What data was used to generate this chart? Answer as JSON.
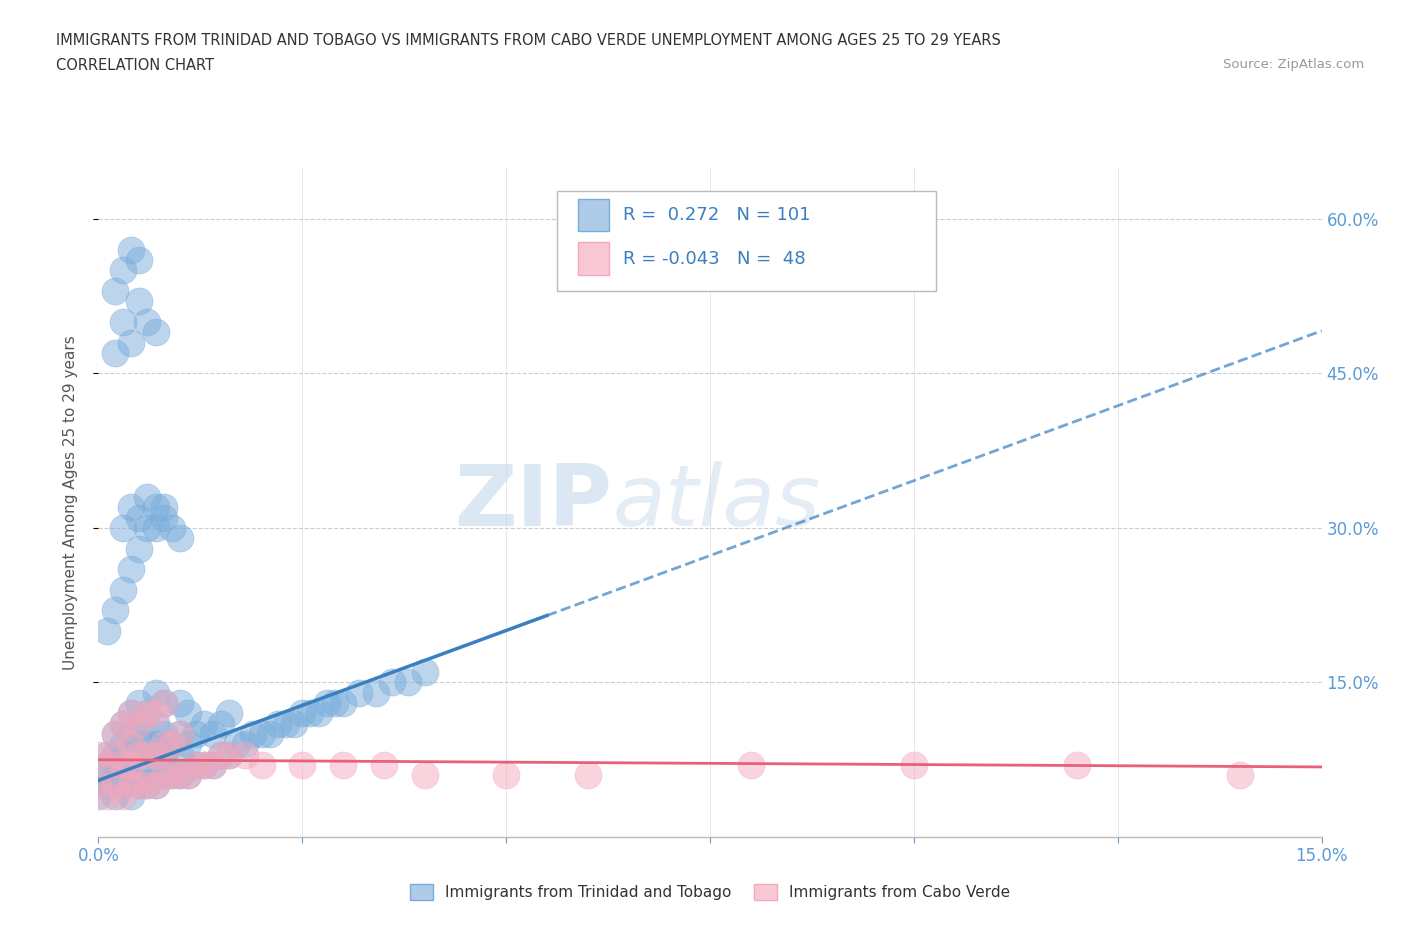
{
  "title_line1": "IMMIGRANTS FROM TRINIDAD AND TOBAGO VS IMMIGRANTS FROM CABO VERDE UNEMPLOYMENT AMONG AGES 25 TO 29 YEARS",
  "title_line2": "CORRELATION CHART",
  "source_text": "Source: ZipAtlas.com",
  "ylabel": "Unemployment Among Ages 25 to 29 years",
  "xlim": [
    0.0,
    0.15
  ],
  "ylim": [
    0.0,
    0.65
  ],
  "xtick_labels": [
    "0.0%",
    "15.0%"
  ],
  "ytick_labels": [
    "15.0%",
    "30.0%",
    "45.0%",
    "60.0%"
  ],
  "ytick_values": [
    0.15,
    0.3,
    0.45,
    0.6
  ],
  "color_tt": "#7AADDB",
  "color_cv": "#F4A8BC",
  "R_tt": 0.272,
  "N_tt": 101,
  "R_cv": -0.043,
  "N_cv": 48,
  "legend_label_tt": "Immigrants from Trinidad and Tobago",
  "legend_label_cv": "Immigrants from Cabo Verde",
  "watermark_zip": "ZIP",
  "watermark_atlas": "atlas",
  "background_color": "#FFFFFF",
  "scatter_alpha": 0.5,
  "tt_scatter_x": [
    0.0,
    0.0,
    0.0,
    0.001,
    0.001,
    0.001,
    0.002,
    0.002,
    0.002,
    0.002,
    0.003,
    0.003,
    0.003,
    0.003,
    0.004,
    0.004,
    0.004,
    0.004,
    0.004,
    0.005,
    0.005,
    0.005,
    0.005,
    0.005,
    0.006,
    0.006,
    0.006,
    0.006,
    0.007,
    0.007,
    0.007,
    0.007,
    0.007,
    0.008,
    0.008,
    0.008,
    0.008,
    0.009,
    0.009,
    0.01,
    0.01,
    0.01,
    0.01,
    0.011,
    0.011,
    0.011,
    0.012,
    0.012,
    0.013,
    0.013,
    0.014,
    0.014,
    0.015,
    0.015,
    0.016,
    0.016,
    0.017,
    0.018,
    0.019,
    0.02,
    0.021,
    0.022,
    0.023,
    0.024,
    0.025,
    0.026,
    0.027,
    0.028,
    0.029,
    0.03,
    0.032,
    0.034,
    0.036,
    0.038,
    0.04,
    0.001,
    0.002,
    0.003,
    0.004,
    0.005,
    0.006,
    0.007,
    0.008,
    0.003,
    0.004,
    0.005,
    0.006,
    0.007,
    0.008,
    0.009,
    0.01,
    0.002,
    0.003,
    0.004,
    0.005,
    0.006,
    0.007,
    0.002,
    0.003,
    0.004,
    0.005
  ],
  "tt_scatter_y": [
    0.05,
    0.04,
    0.06,
    0.05,
    0.07,
    0.08,
    0.04,
    0.06,
    0.08,
    0.1,
    0.05,
    0.07,
    0.09,
    0.11,
    0.04,
    0.06,
    0.08,
    0.1,
    0.12,
    0.05,
    0.07,
    0.09,
    0.11,
    0.13,
    0.05,
    0.07,
    0.09,
    0.12,
    0.05,
    0.07,
    0.09,
    0.11,
    0.14,
    0.06,
    0.08,
    0.1,
    0.13,
    0.06,
    0.09,
    0.06,
    0.08,
    0.1,
    0.13,
    0.06,
    0.09,
    0.12,
    0.07,
    0.1,
    0.07,
    0.11,
    0.07,
    0.1,
    0.08,
    0.11,
    0.08,
    0.12,
    0.09,
    0.09,
    0.1,
    0.1,
    0.1,
    0.11,
    0.11,
    0.11,
    0.12,
    0.12,
    0.12,
    0.13,
    0.13,
    0.13,
    0.14,
    0.14,
    0.15,
    0.15,
    0.16,
    0.2,
    0.22,
    0.24,
    0.26,
    0.28,
    0.3,
    0.3,
    0.32,
    0.3,
    0.32,
    0.31,
    0.33,
    0.32,
    0.31,
    0.3,
    0.29,
    0.47,
    0.5,
    0.48,
    0.52,
    0.5,
    0.49,
    0.53,
    0.55,
    0.57,
    0.56
  ],
  "cv_scatter_x": [
    0.0,
    0.0,
    0.001,
    0.001,
    0.002,
    0.002,
    0.002,
    0.003,
    0.003,
    0.003,
    0.004,
    0.004,
    0.004,
    0.004,
    0.005,
    0.005,
    0.005,
    0.006,
    0.006,
    0.006,
    0.007,
    0.007,
    0.007,
    0.008,
    0.008,
    0.008,
    0.009,
    0.009,
    0.01,
    0.01,
    0.011,
    0.012,
    0.013,
    0.014,
    0.015,
    0.016,
    0.018,
    0.02,
    0.025,
    0.03,
    0.035,
    0.04,
    0.05,
    0.06,
    0.08,
    0.1,
    0.12,
    0.14
  ],
  "cv_scatter_y": [
    0.05,
    0.08,
    0.04,
    0.07,
    0.05,
    0.08,
    0.1,
    0.04,
    0.07,
    0.11,
    0.05,
    0.07,
    0.09,
    0.12,
    0.05,
    0.08,
    0.11,
    0.05,
    0.08,
    0.12,
    0.05,
    0.08,
    0.12,
    0.06,
    0.09,
    0.13,
    0.06,
    0.09,
    0.06,
    0.1,
    0.06,
    0.07,
    0.07,
    0.07,
    0.08,
    0.08,
    0.08,
    0.07,
    0.07,
    0.07,
    0.07,
    0.06,
    0.06,
    0.06,
    0.07,
    0.07,
    0.07,
    0.06
  ],
  "tt_line_x": [
    0.0,
    0.055
  ],
  "tt_line_y": [
    0.055,
    0.215
  ],
  "cv_line_x": [
    0.0,
    0.15
  ],
  "cv_line_y": [
    0.075,
    0.068
  ]
}
